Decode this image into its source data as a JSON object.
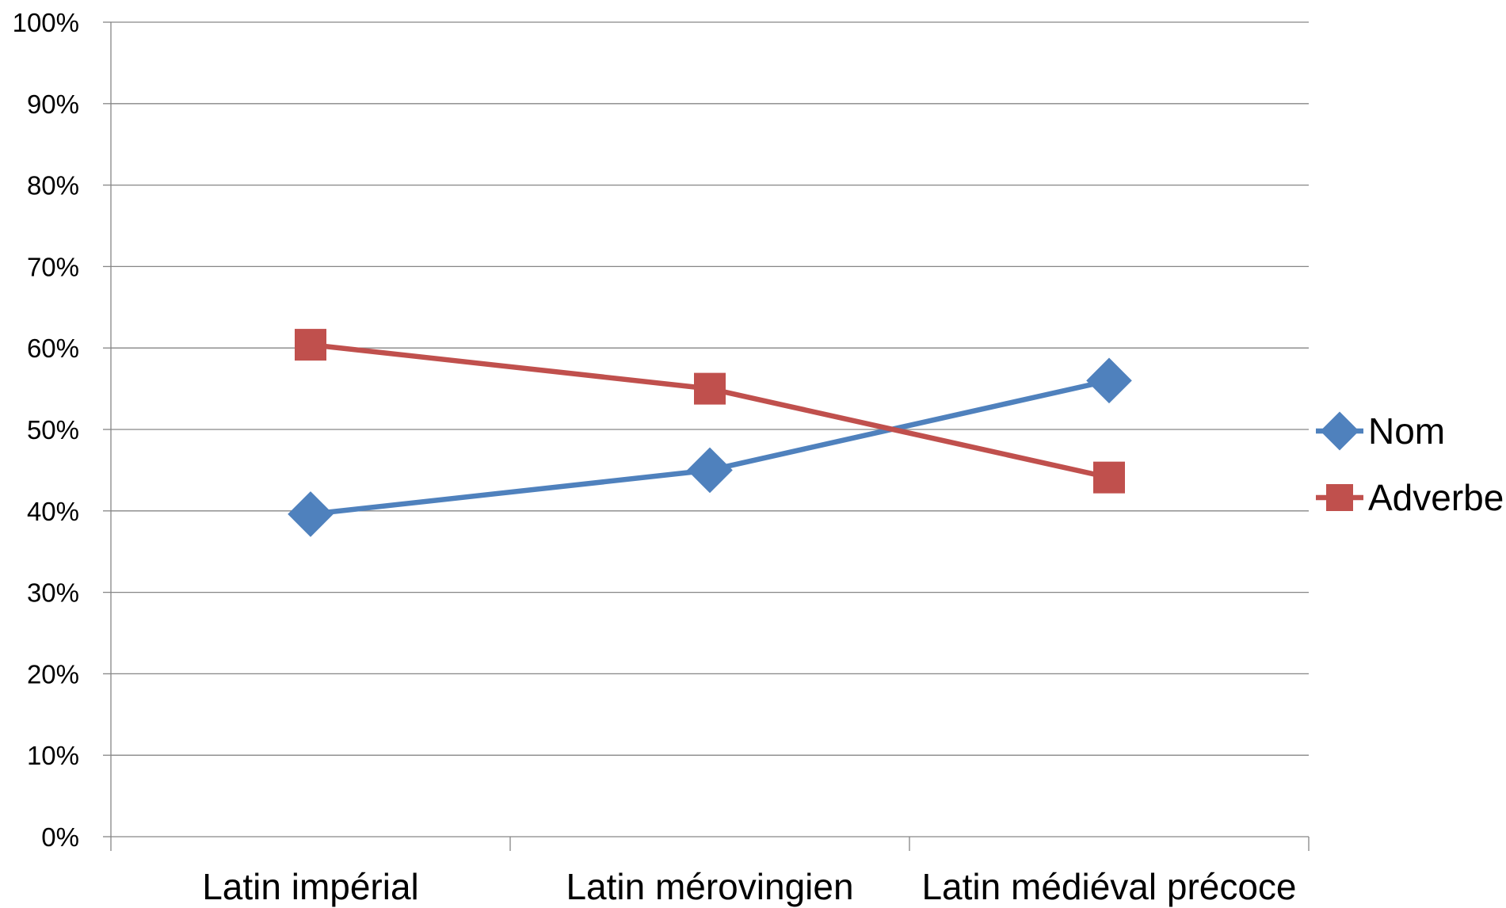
{
  "chart_data": {
    "type": "line",
    "categories": [
      "Latin impérial",
      "Latin mérovingien",
      "Latin médiéval précoce"
    ],
    "series": [
      {
        "name": "Nom",
        "values": [
          39.6,
          45.0,
          56.0
        ],
        "color": "#4F81BD",
        "marker": "diamond"
      },
      {
        "name": "Adverbe",
        "values": [
          60.4,
          55.0,
          44.1
        ],
        "color": "#C0504D",
        "marker": "square"
      }
    ],
    "ylim": [
      0,
      100
    ],
    "yticks": [
      0,
      10,
      20,
      30,
      40,
      50,
      60,
      70,
      80,
      90,
      100
    ],
    "ytick_labels": [
      "0%",
      "10%",
      "20%",
      "30%",
      "40%",
      "50%",
      "60%",
      "70%",
      "80%",
      "90%",
      "100%"
    ],
    "grid": true,
    "legend_position": "right",
    "title": "",
    "xlabel": "",
    "ylabel": ""
  }
}
